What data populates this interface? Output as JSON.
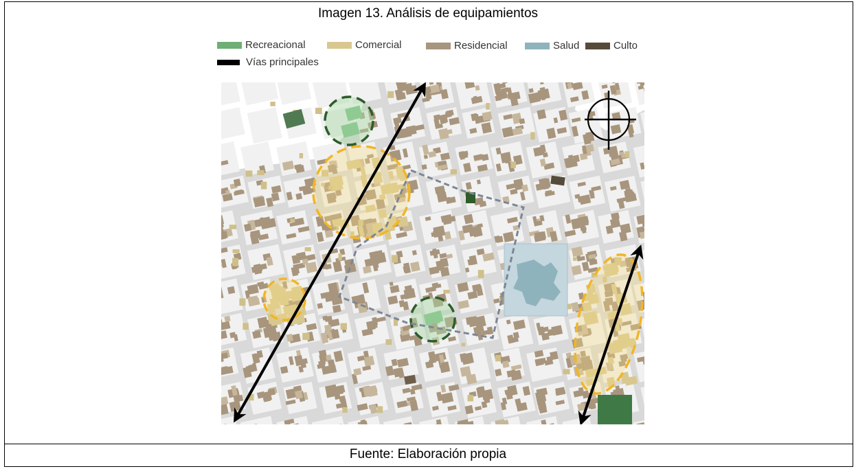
{
  "title": "Imagen 13. Análisis de equipamientos",
  "source": "Fuente: Elaboración propia",
  "legend": {
    "items": [
      {
        "label": "Recreacional",
        "color": "#6fae74"
      },
      {
        "label": "Comercial",
        "color": "#d8c88f"
      },
      {
        "label": "Residencial",
        "color": "#a8957d"
      },
      {
        "label": "Salud",
        "color": "#8fb3bd"
      },
      {
        "label": "Culto",
        "color": "#564a3a"
      },
      {
        "label": "Vías principales",
        "color": "#000000"
      }
    ]
  },
  "colors": {
    "street": "#d9d9d9",
    "block": "#f1f1f1",
    "recreational_zone": "#2e5c2b",
    "commercial_zone": "#f0b627",
    "study_area": "#7d8696"
  }
}
